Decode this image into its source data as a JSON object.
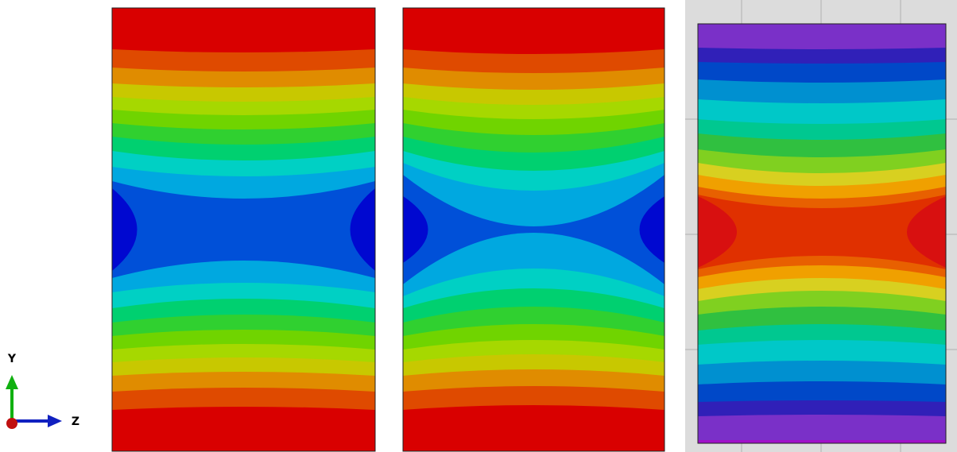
{
  "axis_triad": {
    "y_label": "Y",
    "z_label": "Z"
  }
}
